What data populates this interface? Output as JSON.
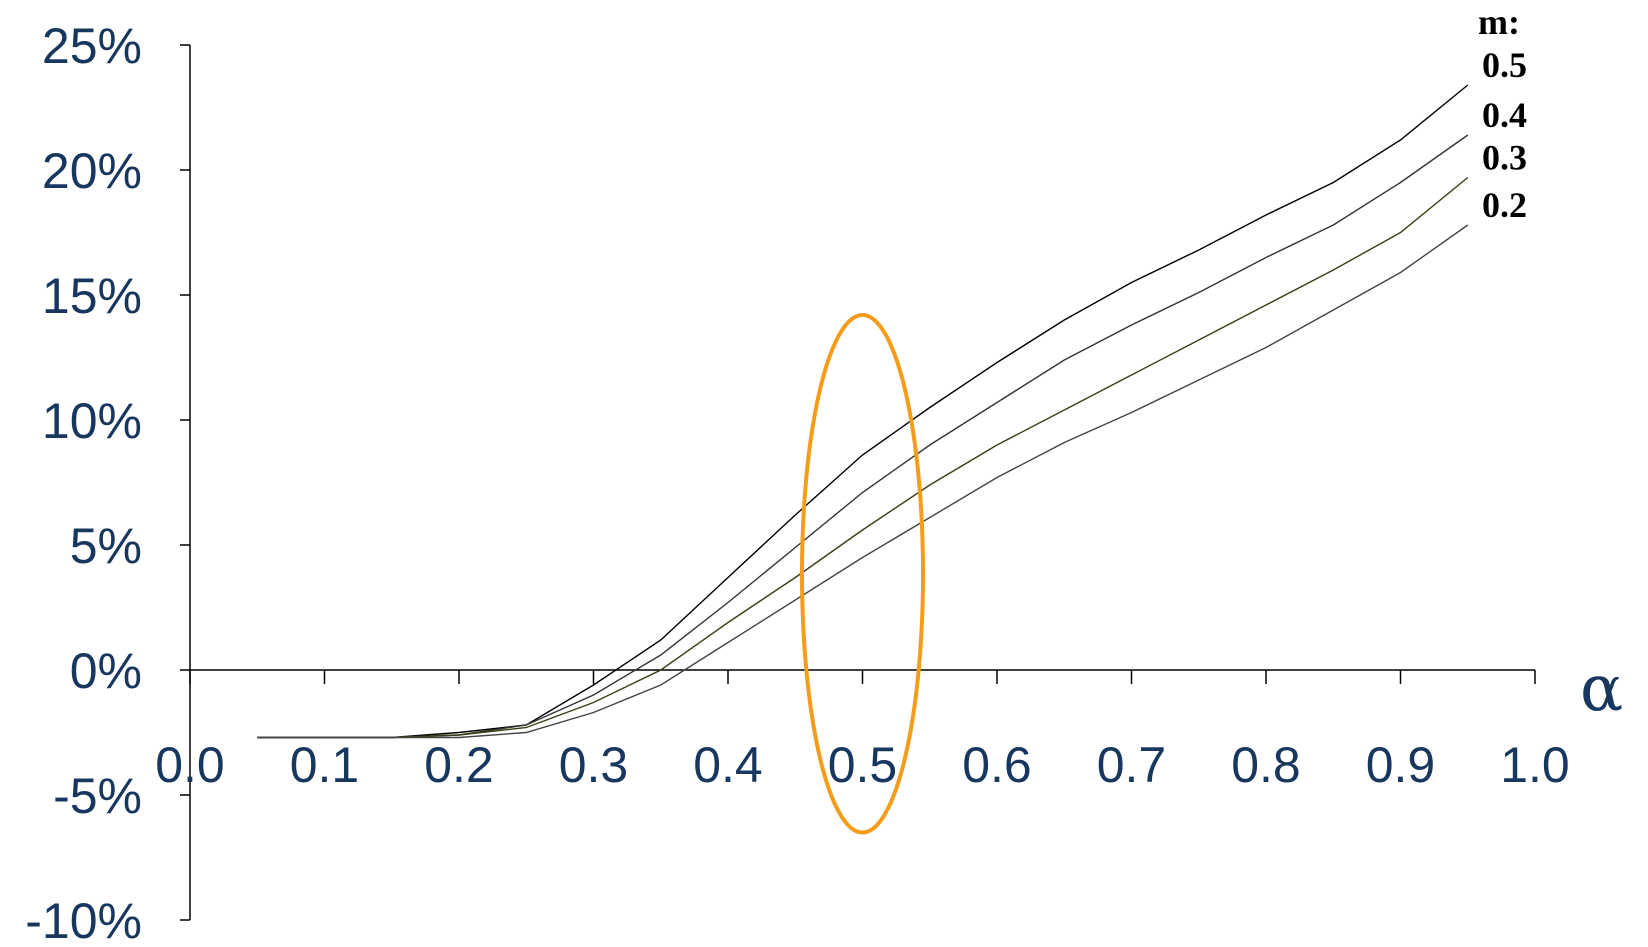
{
  "chart_data": {
    "type": "line",
    "title": "",
    "xlabel": "α",
    "ylabel": "",
    "legend_title": "m:",
    "x": [
      0.05,
      0.1,
      0.15,
      0.2,
      0.25,
      0.3,
      0.35,
      0.4,
      0.45,
      0.5,
      0.55,
      0.6,
      0.65,
      0.7,
      0.75,
      0.8,
      0.85,
      0.9,
      0.95
    ],
    "series": [
      {
        "name": "0.5",
        "values": [
          -2.7,
          -2.7,
          -2.7,
          -2.5,
          -2.2,
          -0.6,
          1.2,
          3.7,
          6.2,
          8.6,
          10.5,
          12.3,
          14.0,
          15.5,
          16.8,
          18.2,
          19.5,
          21.2,
          23.4
        ]
      },
      {
        "name": "0.4",
        "values": [
          -2.7,
          -2.7,
          -2.7,
          -2.6,
          -2.2,
          -1.0,
          0.6,
          2.7,
          4.9,
          7.1,
          9.0,
          10.7,
          12.4,
          13.8,
          15.1,
          16.5,
          17.8,
          19.5,
          21.4
        ]
      },
      {
        "name": "0.3",
        "values": [
          -2.7,
          -2.7,
          -2.7,
          -2.6,
          -2.3,
          -1.3,
          0.0,
          1.9,
          3.7,
          5.6,
          7.4,
          9.0,
          10.4,
          11.8,
          13.2,
          14.6,
          16.0,
          17.5,
          19.7
        ]
      },
      {
        "name": "0.2",
        "values": [
          -2.7,
          -2.7,
          -2.7,
          -2.7,
          -2.5,
          -1.7,
          -0.6,
          1.1,
          2.8,
          4.5,
          6.1,
          7.7,
          9.1,
          10.3,
          11.6,
          12.9,
          14.4,
          15.9,
          17.8
        ]
      }
    ],
    "xticks": [
      "0.0",
      "0.1",
      "0.2",
      "0.3",
      "0.4",
      "0.5",
      "0.6",
      "0.7",
      "0.8",
      "0.9",
      "1.0"
    ],
    "yticks": [
      "25%",
      "20%",
      "15%",
      "10%",
      "5%",
      "0%",
      "-5%",
      "-10%"
    ],
    "xlim": [
      0.0,
      1.0
    ],
    "ylim": [
      -10,
      25
    ],
    "grid": false,
    "legend_placement": "right",
    "highlight": {
      "shape": "ellipse",
      "x": 0.5,
      "y_range": [
        -6.5,
        14.2
      ],
      "width_x": 0.09,
      "color": "#f59c1a"
    },
    "colors": {
      "tick_text": "#17375e",
      "axis": "#000000",
      "lines": [
        "#000000",
        "#333333",
        "#3c3c14",
        "#444444"
      ]
    }
  }
}
